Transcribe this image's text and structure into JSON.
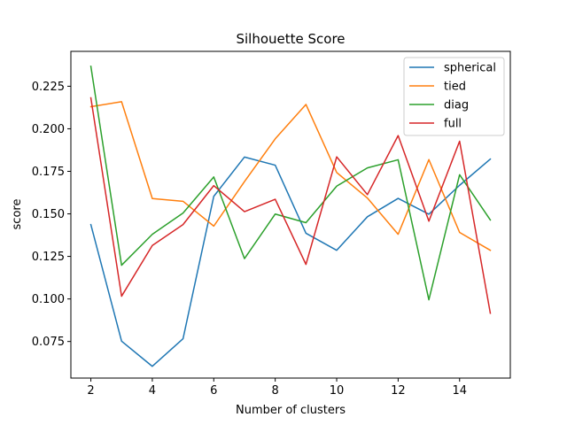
{
  "chart_data": {
    "type": "line",
    "title": "Silhouette Score",
    "xlabel": "Number of clusters",
    "ylabel": "score",
    "x": [
      2,
      3,
      4,
      5,
      6,
      7,
      8,
      9,
      10,
      11,
      12,
      13,
      14,
      15
    ],
    "xlim": [
      1.35,
      15.65
    ],
    "ylim": [
      0.0535,
      0.2455
    ],
    "xticks": [
      2,
      4,
      6,
      8,
      10,
      12,
      14
    ],
    "yticks": [
      0.075,
      0.1,
      0.125,
      0.15,
      0.175,
      0.2,
      0.225
    ],
    "ytick_labels": [
      "0.075",
      "0.100",
      "0.125",
      "0.150",
      "0.175",
      "0.200",
      "0.225"
    ],
    "grid": false,
    "legend_position": "top-right",
    "series": [
      {
        "name": "spherical",
        "color": "#1f77b4",
        "values": [
          0.1437,
          0.0752,
          0.0604,
          0.0766,
          0.1603,
          0.1834,
          0.1786,
          0.1386,
          0.1286,
          0.1483,
          0.1591,
          0.1498,
          0.1668,
          0.1822
        ]
      },
      {
        "name": "tied",
        "color": "#ff7f0e",
        "values": [
          0.213,
          0.2159,
          0.159,
          0.1574,
          0.1428,
          0.169,
          0.1941,
          0.2143,
          0.1743,
          0.1593,
          0.138,
          0.1819,
          0.1391,
          0.1286
        ]
      },
      {
        "name": "diag",
        "color": "#2ca02c",
        "values": [
          0.2367,
          0.1198,
          0.138,
          0.1505,
          0.1717,
          0.1237,
          0.1499,
          0.1448,
          0.1663,
          0.177,
          0.1818,
          0.0995,
          0.173,
          0.1464
        ]
      },
      {
        "name": "full",
        "color": "#d62728",
        "values": [
          0.2182,
          0.1016,
          0.1314,
          0.1437,
          0.1666,
          0.1513,
          0.1586,
          0.1203,
          0.1835,
          0.1613,
          0.196,
          0.1457,
          0.1927,
          0.0916
        ]
      }
    ]
  }
}
